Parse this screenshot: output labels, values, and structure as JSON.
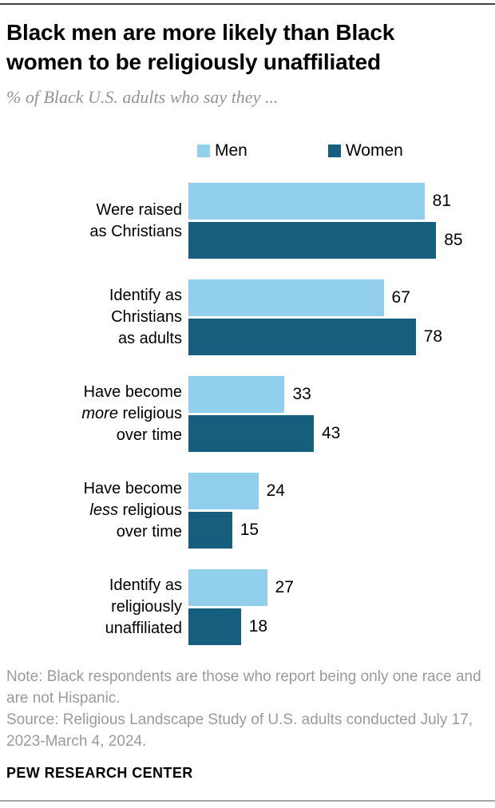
{
  "header": {
    "title_line1": "Black men are more likely than Black",
    "title_line2": "women to be religiously unaffiliated",
    "subtitle": "% of Black U.S. adults who say they ..."
  },
  "legend": {
    "men_label": "Men",
    "women_label": "Women"
  },
  "colors": {
    "men": "#92cfec",
    "women": "#155e7e"
  },
  "chart_data": {
    "type": "bar",
    "orientation": "horizontal",
    "title": "Black men are more likely than Black women to be religiously unaffiliated",
    "subtitle": "% of Black U.S. adults who say they ...",
    "xlim": [
      0,
      100
    ],
    "grid": false,
    "legend_position": "top",
    "value_labels": true,
    "categories": [
      "Were raised as Christians",
      "Identify as Christians as adults",
      "Have become more religious over time",
      "Have become less religious over time",
      "Identify as religiously unaffiliated"
    ],
    "series": [
      {
        "name": "Men",
        "values": [
          81,
          67,
          33,
          24,
          27
        ]
      },
      {
        "name": "Women",
        "values": [
          85,
          78,
          43,
          15,
          18
        ]
      }
    ],
    "groups": [
      {
        "label_lines": [
          {
            "text": "Were raised"
          },
          {
            "text": "as Christians"
          }
        ],
        "men": 81,
        "women": 85
      },
      {
        "label_lines": [
          {
            "text": "Identify as"
          },
          {
            "text": "Christians"
          },
          {
            "text": "as adults"
          }
        ],
        "men": 67,
        "women": 78
      },
      {
        "label_lines": [
          {
            "text": "Have become"
          },
          {
            "italic": "more",
            "rest": " religious"
          },
          {
            "text": "over time"
          }
        ],
        "men": 33,
        "women": 43
      },
      {
        "label_lines": [
          {
            "text": "Have become"
          },
          {
            "italic": "less",
            "rest": " religious"
          },
          {
            "text": "over time"
          }
        ],
        "men": 24,
        "women": 15
      },
      {
        "label_lines": [
          {
            "text": "Identify as"
          },
          {
            "text": "religiously"
          },
          {
            "text": "unaffiliated"
          }
        ],
        "men": 27,
        "women": 18
      }
    ]
  },
  "footer": {
    "note": "Note: Black respondents are those who report being only one race and are not Hispanic.",
    "source": "Source: Religious Landscape Study of U.S. adults conducted July 17, 2023-March 4, 2024.",
    "brand": "PEW RESEARCH CENTER"
  }
}
